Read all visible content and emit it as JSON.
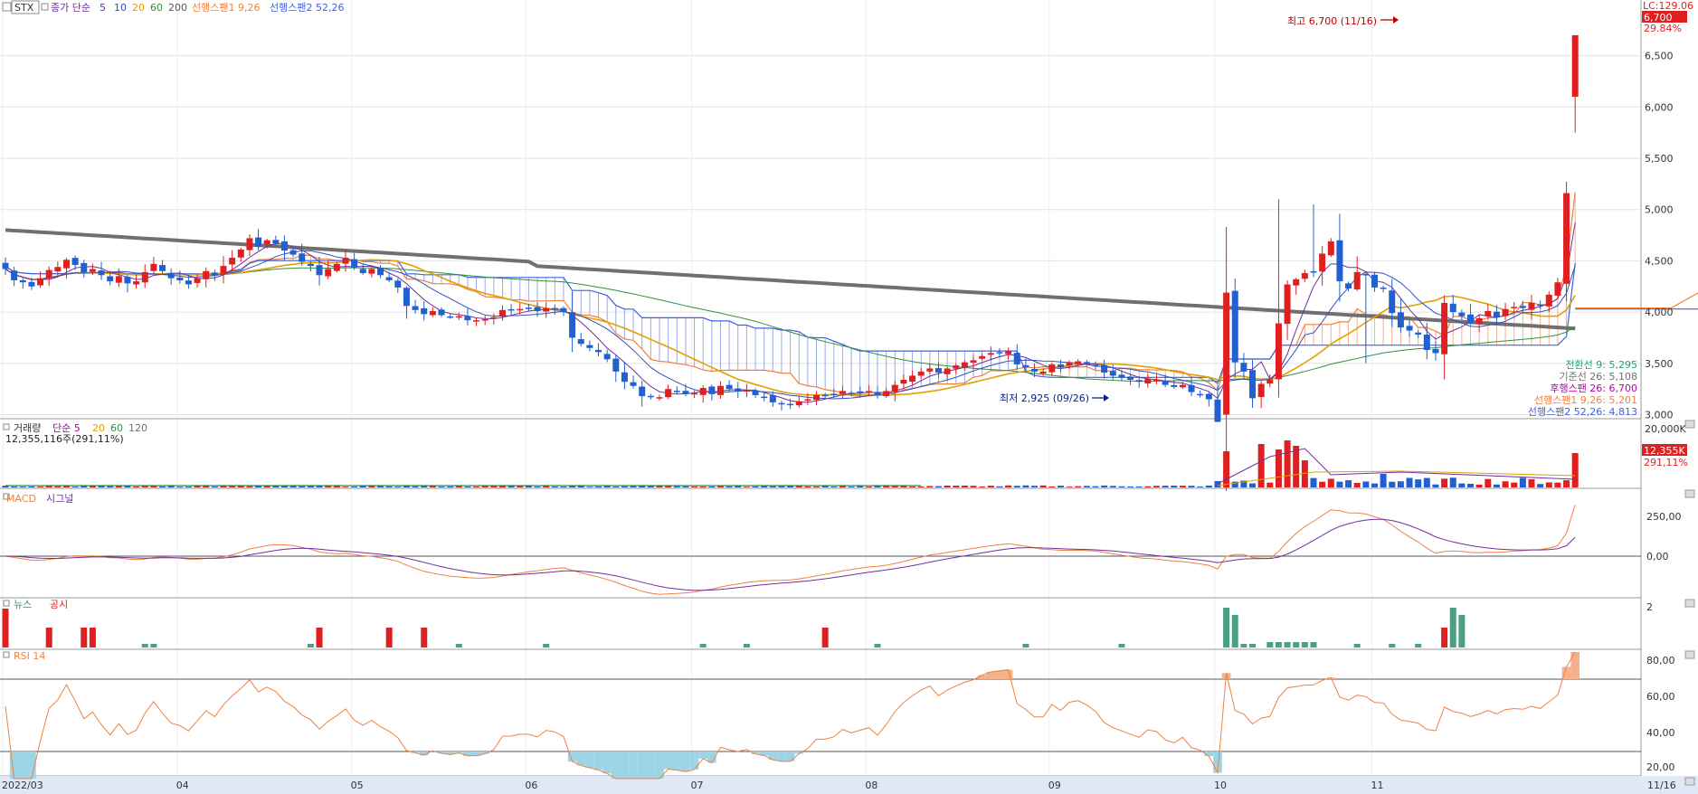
{
  "main_panel": {
    "ticker": "STX",
    "legend": [
      {
        "text": "종가 단순",
        "color": "#7030a0"
      },
      {
        "text": "5",
        "color": "#7030a0"
      },
      {
        "text": "10",
        "color": "#3050c0"
      },
      {
        "text": "20",
        "color": "#e0a000"
      },
      {
        "text": "60",
        "color": "#309040"
      },
      {
        "text": "200",
        "color": "#555555"
      },
      {
        "text": "선행스팬1 9,26",
        "color": "#f08040"
      },
      {
        "text": "선행스팬2 52,26",
        "color": "#4060e0"
      }
    ],
    "lc_label": "LC:129.06",
    "last_price_box": "6,700",
    "last_change": "29.84%",
    "y_ticks": [
      "6,500",
      "6,000",
      "5,500",
      "5,000",
      "4,500",
      "4,000",
      "3,500",
      "3,000"
    ],
    "high_annotation": "최고 6,700 (11/16)",
    "low_annotation": "최저 2,925 (09/26)",
    "ichimoku_values": [
      {
        "text": "전환선 9: 5,295",
        "color": "#20a080"
      },
      {
        "text": "기준선 26: 5,108",
        "color": "#707070"
      },
      {
        "text": "후행스팬 26: 6,700",
        "color": "#b000b0"
      },
      {
        "text": "선행스팬1 9,26: 5,201",
        "color": "#f08040"
      },
      {
        "text": "선행스팬2 52,26: 4,813",
        "color": "#4060e0"
      }
    ]
  },
  "volume_panel": {
    "title_parts": [
      {
        "text": "거래량",
        "color": "#333333"
      },
      {
        "text": "단순 5",
        "color": "#b000b0"
      },
      {
        "text": "20",
        "color": "#e0a000"
      },
      {
        "text": "60",
        "color": "#309040"
      },
      {
        "text": "120",
        "color": "#707070"
      }
    ],
    "value_text": "12,355,116주(291,11%)",
    "y_ticks": [
      "20,000K"
    ],
    "last_box": "12,355K",
    "last_pct": "291,11%"
  },
  "macd_panel": {
    "title_parts": [
      {
        "text": "MACD",
        "color": "#f08040"
      },
      {
        "text": "시그널",
        "color": "#7030a0"
      }
    ],
    "y_ticks": [
      "250,00",
      "0,00"
    ]
  },
  "news_panel": {
    "title_parts": [
      {
        "text": "뉴스",
        "color": "#309070"
      },
      {
        "text": "공시",
        "color": "#e02020"
      }
    ],
    "y_ticks": [
      "2"
    ]
  },
  "rsi_panel": {
    "title": "RSI 14",
    "y_ticks": [
      "80,00",
      "60,00",
      "40,00",
      "20,00"
    ]
  },
  "x_axis": {
    "labels": [
      {
        "text": "2022/03",
        "i": 0
      },
      {
        "text": "04",
        "i": 20
      },
      {
        "text": "05",
        "i": 40
      },
      {
        "text": "06",
        "i": 60
      },
      {
        "text": "07",
        "i": 79
      },
      {
        "text": "08",
        "i": 99
      },
      {
        "text": "09",
        "i": 120
      },
      {
        "text": "10",
        "i": 139
      },
      {
        "text": "11",
        "i": 157
      }
    ],
    "end_label": "11/16"
  },
  "colors": {
    "up": "#e02020",
    "down": "#2060d0",
    "sma5": "#7030a0",
    "sma10": "#3050c0",
    "sma20": "#e0a000",
    "sma60": "#309040",
    "sma200": "#707070",
    "span1": "#f08040",
    "span2": "#4060e0"
  },
  "chart_data": {
    "type": "candlestick",
    "title": "STX",
    "price_range": [
      2800,
      6800
    ],
    "x_start": "2022/03",
    "x_end": "11/16",
    "high": {
      "value": 6700,
      "date": "11/16"
    },
    "low": {
      "value": 2925,
      "date": "09/26"
    },
    "close": [
      4420,
      4310,
      4290,
      4250,
      4330,
      4410,
      4440,
      4510,
      4460,
      4390,
      4420,
      4360,
      4300,
      4350,
      4280,
      4300,
      4390,
      4470,
      4400,
      4330,
      4310,
      4270,
      4330,
      4400,
      4360,
      4450,
      4530,
      4610,
      4720,
      4640,
      4700,
      4670,
      4600,
      4560,
      4490,
      4450,
      4360,
      4420,
      4470,
      4530,
      4430,
      4380,
      4420,
      4360,
      4310,
      4240,
      4060,
      4020,
      3980,
      4010,
      3970,
      3950,
      3960,
      3920,
      3920,
      3930,
      3950,
      4020,
      4020,
      4030,
      4030,
      4010,
      4040,
      4030,
      4000,
      3750,
      3690,
      3650,
      3610,
      3540,
      3420,
      3320,
      3280,
      3180,
      3170,
      3170,
      3250,
      3230,
      3200,
      3210,
      3260,
      3200,
      3280,
      3250,
      3230,
      3240,
      3190,
      3170,
      3120,
      3100,
      3100,
      3130,
      3150,
      3190,
      3190,
      3200,
      3230,
      3210,
      3220,
      3230,
      3190,
      3230,
      3290,
      3340,
      3380,
      3420,
      3450,
      3410,
      3450,
      3480,
      3510,
      3530,
      3570,
      3600,
      3610,
      3620,
      3490,
      3460,
      3420,
      3420,
      3490,
      3460,
      3510,
      3520,
      3500,
      3470,
      3410,
      3380,
      3360,
      3340,
      3320,
      3350,
      3340,
      3290,
      3270,
      3290,
      3220,
      3200,
      3150,
      2930,
      4190,
      3510,
      3420,
      3160,
      3300,
      3340,
      3890,
      4270,
      4320,
      4380,
      4390,
      4570,
      4690,
      4300,
      4230,
      4390,
      4360,
      4240,
      4230,
      3990,
      3850,
      3820,
      3780,
      3630,
      3600,
      4090,
      4000,
      3960,
      3890,
      3940,
      4010,
      3950,
      4030,
      4050,
      4040,
      4090,
      4060,
      4170,
      4290,
      5160,
      6700
    ],
    "ichimoku_summary": {
      "전환선 9": 5295,
      "기준선 26": 5108,
      "후행스팬 26": 6700,
      "선행스팬1 9,26": 5201,
      "선행스팬2 52,26": 4813
    },
    "volume_last": 12355116,
    "volume_pct": "291,11%",
    "rsi_period": 14
  }
}
